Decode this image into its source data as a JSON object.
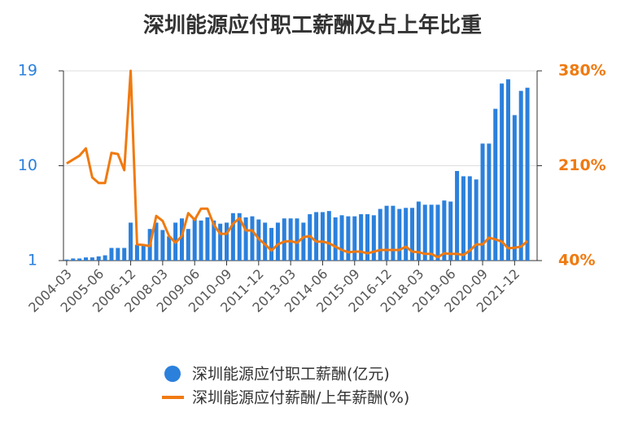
{
  "chart_data": {
    "type": "combo",
    "title": "深圳能源应付职工薪酬及占上年比重",
    "categories": [
      "2004-03",
      null,
      null,
      null,
      null,
      "2005-06",
      null,
      null,
      null,
      null,
      "2006-12",
      null,
      null,
      null,
      null,
      "2008-03",
      null,
      null,
      null,
      null,
      "2009-06",
      null,
      null,
      null,
      null,
      "2010-09",
      null,
      null,
      null,
      null,
      "2011-12",
      null,
      null,
      null,
      null,
      "2013-03",
      null,
      null,
      null,
      null,
      "2014-06",
      null,
      null,
      null,
      null,
      "2015-09",
      null,
      null,
      null,
      null,
      "2016-12",
      null,
      null,
      null,
      null,
      "2018-03",
      null,
      null,
      null,
      null,
      "2019-06",
      null,
      null,
      null,
      null,
      "2020-09",
      null,
      null,
      null,
      null,
      "2021-12",
      null,
      null
    ],
    "series": [
      {
        "name": "深圳能源应付职工薪酬(亿元)",
        "type": "bar",
        "axis": "y",
        "color": "#2b80dc",
        "values": [
          1.1,
          1.2,
          1.2,
          1.3,
          1.3,
          1.4,
          1.5,
          2.2,
          2.2,
          2.2,
          4.6,
          2.5,
          2.4,
          4.0,
          4.6,
          3.9,
          3.3,
          4.6,
          5.0,
          4.0,
          5.0,
          4.8,
          5.1,
          4.8,
          4.5,
          4.6,
          5.5,
          5.5,
          5.1,
          5.2,
          4.9,
          4.6,
          4.1,
          4.6,
          5.0,
          5.0,
          5.0,
          4.6,
          5.4,
          5.6,
          5.6,
          5.7,
          5.1,
          5.3,
          5.2,
          5.2,
          5.4,
          5.4,
          5.3,
          5.9,
          6.2,
          6.2,
          5.9,
          6.0,
          6.0,
          6.6,
          6.3,
          6.3,
          6.3,
          6.7,
          6.6,
          9.5,
          9.0,
          9.0,
          8.7,
          12.1,
          12.1,
          15.4,
          17.8,
          18.2,
          14.8,
          17.1,
          17.4
        ]
      },
      {
        "name": "深圳能源应付薪酬/上年薪酬(%)",
        "type": "line",
        "axis": "y2",
        "color": "#f07a10",
        "values": [
          214,
          221,
          228,
          241,
          189,
          179,
          179,
          233,
          231,
          202,
          380,
          69,
          68,
          66,
          120,
          111,
          84,
          72,
          84,
          125,
          113,
          133,
          133,
          104,
          88,
          88,
          106,
          116,
          94,
          94,
          79,
          69,
          58,
          69,
          74,
          75,
          72,
          82,
          84,
          74,
          74,
          71,
          65,
          59,
          55,
          56,
          56,
          53,
          56,
          59,
          59,
          59,
          59,
          65,
          56,
          55,
          52,
          52,
          46,
          53,
          52,
          52,
          50,
          58,
          69,
          69,
          81,
          78,
          74,
          62,
          63,
          65,
          75
        ]
      }
    ],
    "ylim": [
      1,
      19
    ],
    "yticks": [
      1,
      10,
      19
    ],
    "y2lim": [
      40,
      380
    ],
    "y2ticks": [
      {
        "value": 40,
        "label": "40%"
      },
      {
        "value": 210,
        "label": "210%"
      },
      {
        "value": 380,
        "label": "380%"
      }
    ],
    "grid": true
  }
}
